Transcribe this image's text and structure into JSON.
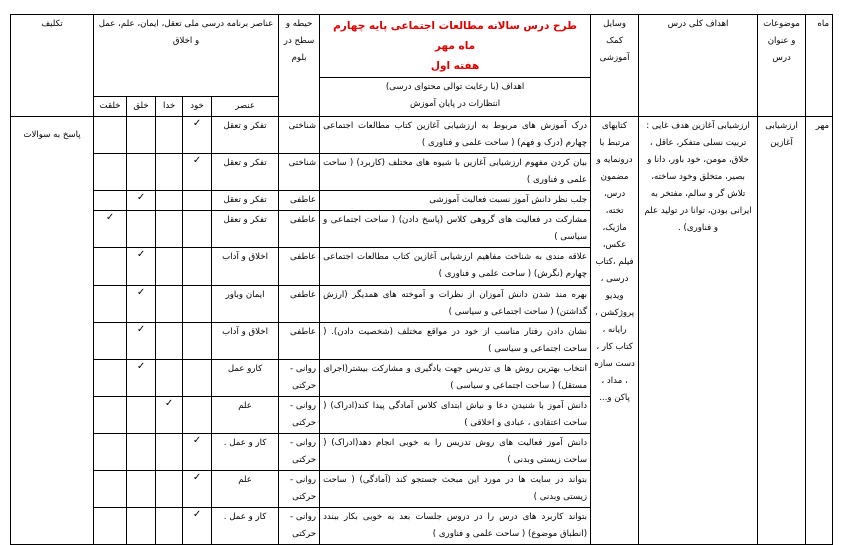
{
  "header": {
    "month": "ماه",
    "topics": "موضوعات و عنوان درس",
    "general_goals": "اهداف کلی درس",
    "aids": "وسایل کمک آموزشی",
    "title_line1": "طرح درس سالانه مطالعات اجتماعی پایه چهارم ماه مهر",
    "title_line2": "هفته اول",
    "goals_sub_line1": "اهداف (با رعایت توالی محتوای درسی)",
    "goals_sub_line2": "انتظارات در پایان آموزش",
    "domain": "حیطه و سطح در بلوم",
    "elements_group": "عناصر برنامه درسی ملی تعقل، ایمان، علم، عمل و اخلاق",
    "element": "عنصر",
    "self": "خود",
    "god": "خدا",
    "creation": "خلق",
    "nature": "خلقت",
    "assignment": "تکلیف"
  },
  "month_value": "مهر",
  "topic_value": "ارزشیابی آغازین",
  "general_goals_value": "ارزشیابی آغازین هدف غایی : تربیت نسلی متفکر، عاقل ، خلاق، مومن، خود باور، دانا و بصیر، متخلق وخود ساخته، تلاش گر و سالم، مفتخر به ایرانی بودن، توانا در تولید علم و فناوری) .",
  "aids_value": "کتابهای مرتبط با درونمایه و مضمون درس، تخته، ماژیک، عکس، فیلم ،کتاب درسی ، ویدیو پروژکشن ، رایانه ، کتاب کار ، دست سازه ، مداد ، پاکن و...",
  "assignment_value": "پاسخ به سوالات",
  "rows": [
    {
      "goal": "درک آموزش های مربوط به ارزشیابی آغازین کتاب مطالعات اجتماعی چهارم (درک و فهم) ( ساحت علمی و فناوری )",
      "domain": "شناختی",
      "element": "تفکر و تعقل",
      "check": "self"
    },
    {
      "goal": "بیان کردن مفهوم ارزشیابی آغازین با شیوه های مختلف (کاربرد) ( ساحت علمی و فناوری )",
      "domain": "شناختی",
      "element": "تفکر و تعقل",
      "check": "self"
    },
    {
      "goal": "جلب نظر دانش آموز نسبت فعالیت آموزشی",
      "domain": "عاطفی",
      "element": "تفکر و تعقل",
      "check": "creation"
    },
    {
      "goal": "مشارکت در فعالیت های گروهی کلاس (پاسخ دادن) ( ساحت اجتماعی و سیاسی )",
      "domain": "عاطفی",
      "element": "تفکر و تعقل",
      "check": "nature"
    },
    {
      "goal": "علاقه مندی به شناخت مفاهیم ارزشیابی آغازین کتاب مطالعات اجتماعی چهارم (نگرش) ( ساحت علمی و فناوری )",
      "domain": "عاطفی",
      "element": "اخلاق و آداب",
      "check": "creation"
    },
    {
      "goal": "بهره مند شدن دانش آموزان از نظرات و آموخته های همدیگر (ارزش گذاشتن) ( ساحت اجتماعی و سیاسی )",
      "domain": "عاطفی",
      "element": "ایمان وباور",
      "check": "creation"
    },
    {
      "goal": "نشان دادن رفتار مناسب از خود در مواقع مختلف (شخصیت دادن). ( ساحت اجتماعی و سیاسی )",
      "domain": "عاطفی",
      "element": "اخلاق و آداب",
      "check": "creation"
    },
    {
      "goal": "انتخاب بهترین روش ها ی تدریس جهت یادگیری و مشارکت بیشتر(اجرای مستقل) ( ساحت اجتماعی و سیاسی )",
      "domain": "روانی - حرکتی",
      "element": "کارو عمل",
      "check": "creation"
    },
    {
      "goal": "دانش آموز با شنیدن دعا و نیاش ابتدای کلاس آمادگی پیدا کند(ادراک) ( ساحت اعتقادی ، عبادی و اخلاقی )",
      "domain": "روانی - حرکتی",
      "element": "علم",
      "check": "god"
    },
    {
      "goal": "دانش آموز فعالیت های روش تدریس را به خوبی انجام دهد(ادراک) ( ساحت زیستی وبدنی )",
      "domain": "روانی - حرکتی",
      "element": "کار و عمل .",
      "check": "self"
    },
    {
      "goal": "بتواند در سایت ها در مورد این مبحث جستجو کند (آمادگی) ( ساحت زیستی وبدنی )",
      "domain": "روانی - حرکتی",
      "element": "علم",
      "check": "self"
    },
    {
      "goal": "بتواند کاربرد های درس را در دروس جلسات بعد به خوبی بکار ببندد (انطباق موضوع) ( ساحت علمی و فناوری )",
      "domain": "روانی - حرکتی",
      "element": "کار و عمل .",
      "check": "self"
    }
  ],
  "check_mark": "✓",
  "colors": {
    "title": "#e00000",
    "border": "#000000"
  }
}
